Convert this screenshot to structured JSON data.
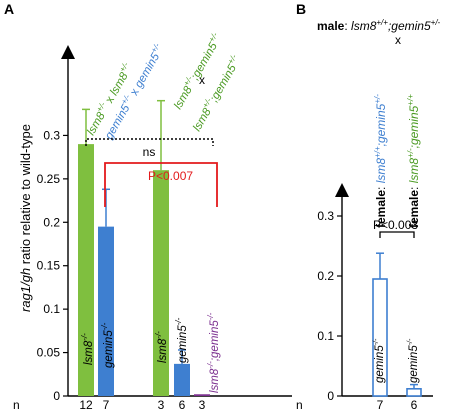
{
  "colors": {
    "green": "#7fbf3f",
    "blue": "#3e7fd0",
    "purple": "#7b2f8f",
    "red": "#e31a1c",
    "black": "#000000"
  },
  "panelA": {
    "letter": "A",
    "ylabel": {
      "italic": "rag1/gh",
      "rest": " ratio relative to wild-type"
    },
    "n_label": "n",
    "ns_label": "ns",
    "p_label": "P<0.007",
    "cross1": {
      "female": {
        "pre": "lsm8",
        "sup": "+/-",
        "post": " x "
      },
      "male": {
        "pre": "lsm8",
        "sup": "+/-"
      },
      "female2": {
        "pre": "gemin5",
        "sup": "+/-",
        "post": " x "
      },
      "male2": {
        "pre": "gemin5",
        "sup": "+/-"
      }
    },
    "cross2": {
      "left": {
        "a": "lsm8",
        "asup": "+/-",
        "b": ";gemin5",
        "bsup": "+/-"
      },
      "x": "x",
      "right": {
        "a": "lsm8",
        "asup": "+/-",
        "b": ";gemin5",
        "bsup": "+/-"
      }
    },
    "bar_labels": {
      "b1": {
        "base": "lsm8",
        "sup": "-/-"
      },
      "b2": {
        "base": "gemin5",
        "sup": "-/-"
      },
      "b3": {
        "base": "lsm8",
        "sup": "-/-"
      },
      "b4": {
        "base": "gemin5",
        "sup": "-/-"
      },
      "b5": {
        "a": "lsm8",
        "asup": "-/-",
        "b": ";gemin5",
        "bsup": "-/-"
      }
    }
  },
  "panelB": {
    "letter": "B",
    "male_cross": {
      "bold": "male",
      "sep": ": ",
      "a": "lsm8",
      "asup": "+/+",
      "b": ";gemin5",
      "bsup": "+/-"
    },
    "x": "x",
    "female1": {
      "bold": "female",
      "sep": ": ",
      "a": "lsm8",
      "asup": "+/+",
      "b": ";gemin5",
      "bsup": "+/-"
    },
    "female2": {
      "bold": "female",
      "sep": ": ",
      "a": "lsm8",
      "asup": "+/-",
      "b": ";gemin5",
      "bsup": "+/+"
    },
    "p_label": "P<0.003",
    "n_label": "n",
    "bar_labels": {
      "b1": {
        "base": "gemin5",
        "sup": "-/-"
      },
      "b2": {
        "base": "gemin5",
        "sup": "-/-"
      }
    }
  },
  "chart_data": [
    {
      "type": "bar",
      "panel": "A",
      "ylabel": "rag1/gh ratio relative to wild-type",
      "ylim": [
        0,
        0.35
      ],
      "yticks": [
        0,
        0.05,
        0.1,
        0.15,
        0.2,
        0.25,
        0.3
      ],
      "ytick_labels": [
        "0",
        "0.05",
        "0.1",
        "0.15",
        "0.2",
        "0.25",
        "0.3"
      ],
      "bars": [
        {
          "label": "lsm8-/-",
          "group": 1,
          "value": 0.29,
          "error": 0.04,
          "n": "12",
          "fill": "green"
        },
        {
          "label": "gemin5-/-",
          "group": 1,
          "value": 0.195,
          "error": 0.043,
          "n": "7",
          "fill": "blue"
        },
        {
          "label": "lsm8-/-",
          "group": 2,
          "value": 0.26,
          "error": 0.08,
          "n": "3",
          "fill": "green"
        },
        {
          "label": "gemin5-/-",
          "group": 2,
          "value": 0.037,
          "error": 0.016,
          "n": "6",
          "fill": "blue"
        },
        {
          "label": "lsm8-/-;gemin5-/-",
          "group": 2,
          "value": 0.002,
          "error": 0,
          "n": "3",
          "fill": "purple"
        }
      ],
      "annotations": [
        "ns",
        "P<0.007"
      ]
    },
    {
      "type": "bar",
      "panel": "B",
      "ylim": [
        0,
        0.35
      ],
      "yticks": [
        0,
        0.1,
        0.2,
        0.3
      ],
      "ytick_labels": [
        "0",
        "0.1",
        "0.2",
        "0.3"
      ],
      "bars": [
        {
          "label": "gemin5-/-",
          "value": 0.195,
          "error": 0.043,
          "n": "7"
        },
        {
          "label": "gemin5-/-",
          "value": 0.012,
          "error": 0.007,
          "n": "6"
        }
      ],
      "annotations": [
        "P<0.003"
      ]
    }
  ]
}
